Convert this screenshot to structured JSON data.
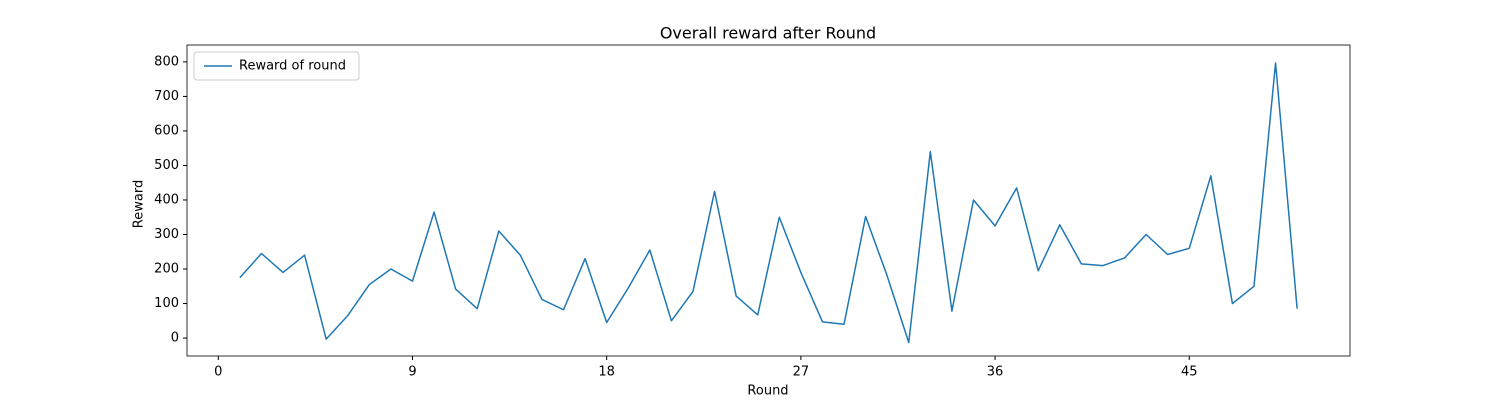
{
  "chart_data": {
    "type": "line",
    "title": "Overall reward after Round",
    "xlabel": "Round",
    "ylabel": "Reward",
    "x": [
      1,
      2,
      3,
      4,
      5,
      6,
      7,
      8,
      9,
      10,
      11,
      12,
      13,
      14,
      15,
      16,
      17,
      18,
      19,
      20,
      21,
      22,
      23,
      24,
      25,
      26,
      27,
      28,
      29,
      30,
      31,
      32,
      33,
      34,
      35,
      36,
      37,
      38,
      39,
      40,
      41,
      42,
      43,
      44,
      45,
      46,
      47,
      48,
      49,
      50
    ],
    "series": [
      {
        "name": "Reward of round",
        "color": "#1f77b4",
        "values": [
          175,
          245,
          190,
          240,
          -3,
          65,
          155,
          200,
          165,
          365,
          142,
          85,
          310,
          240,
          112,
          82,
          230,
          45,
          145,
          255,
          50,
          135,
          425,
          122,
          67,
          350,
          190,
          47,
          40,
          352,
          180,
          -13,
          540,
          78,
          400,
          325,
          435,
          195,
          328,
          215,
          210,
          232,
          300,
          242,
          260,
          470,
          100,
          150,
          797,
          85
        ]
      }
    ],
    "xlim": [
      -1.45,
      52.45
    ],
    "xticks": [
      0,
      9,
      18,
      27,
      36,
      45
    ],
    "ylim": [
      -52,
      849
    ],
    "yticks": [
      0,
      100,
      200,
      300,
      400,
      500,
      600,
      700,
      800
    ],
    "legend": "upper left"
  }
}
